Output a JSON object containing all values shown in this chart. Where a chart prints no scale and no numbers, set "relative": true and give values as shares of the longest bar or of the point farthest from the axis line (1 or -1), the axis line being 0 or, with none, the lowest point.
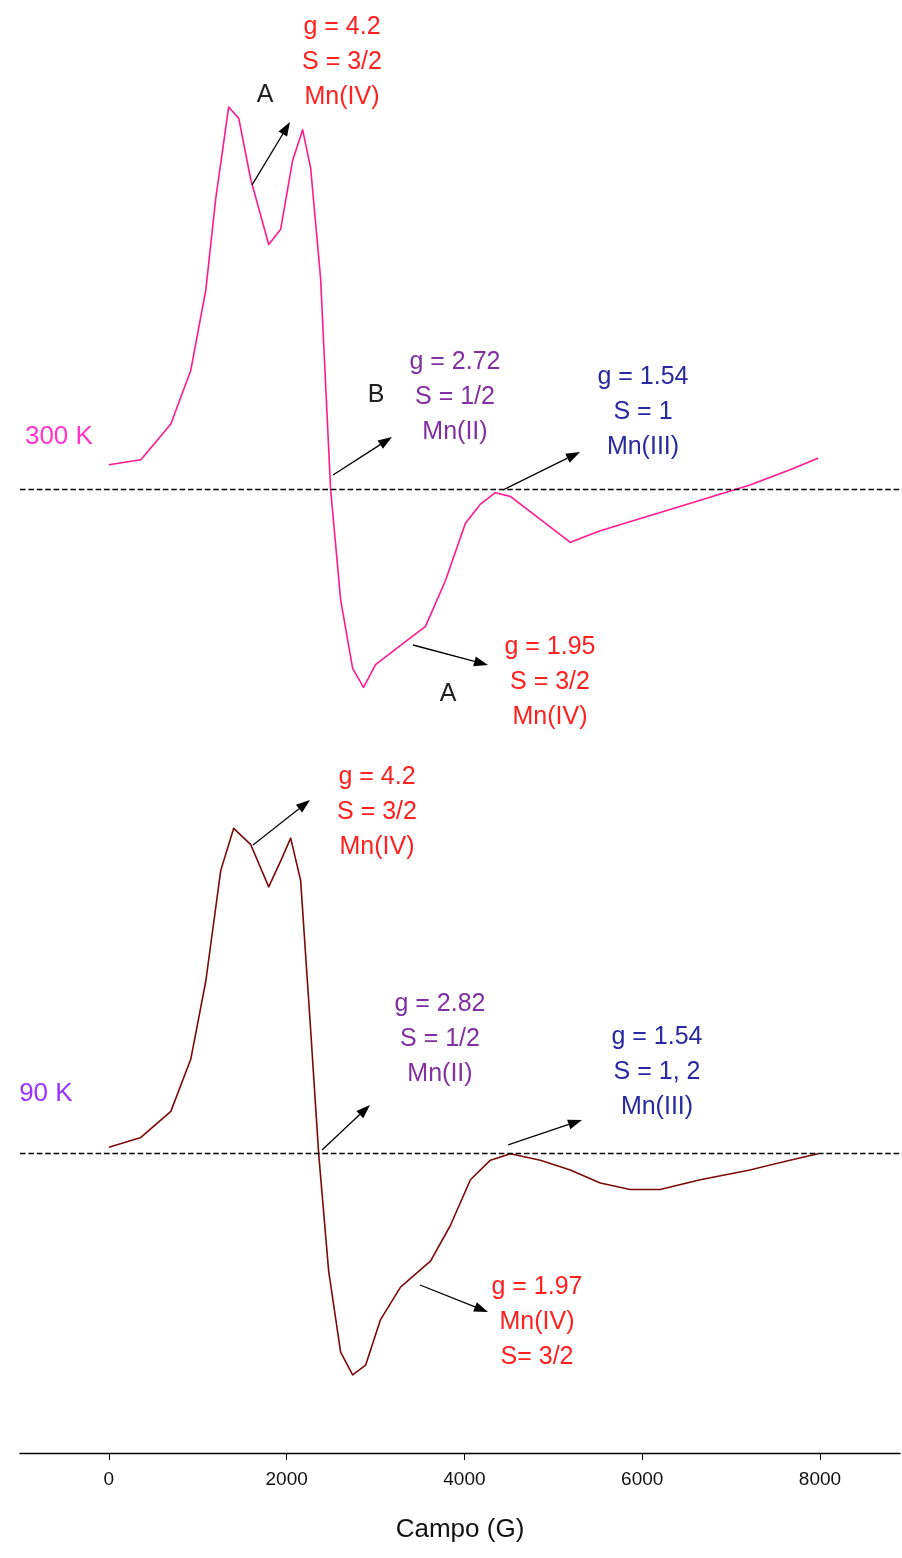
{
  "chart_data": [
    {
      "type": "line",
      "relative": true,
      "xlim": [
        -1000,
        8900
      ],
      "tick_labels": false,
      "series": [
        {
          "name": "300 K",
          "color": "#ff1a8c",
          "x": [
            0,
            360,
            697,
            921,
            1090,
            1202,
            1348,
            1461,
            1596,
            1798,
            1933,
            2067,
            2180,
            2270,
            2382,
            2494,
            2607,
            2742,
            2865,
            3000,
            3281,
            3562,
            3787,
            4011,
            4180,
            4348,
            4517,
            4854,
            5191,
            5528,
            6090,
            6652,
            7213,
            7663,
            7978
          ],
          "values": [
            0.063,
            0.076,
            0.17,
            0.31,
            0.52,
            0.76,
            1.0,
            0.97,
            0.81,
            0.64,
            0.68,
            0.86,
            0.94,
            0.84,
            0.55,
            0,
            -0.29,
            -0.47,
            -0.52,
            -0.46,
            -0.41,
            -0.36,
            -0.24,
            -0.09,
            -0.04,
            -0.01,
            -0.02,
            -0.08,
            -0.14,
            -0.11,
            -0.07,
            -0.03,
            0.01,
            0.05,
            0.08
          ]
        }
      ],
      "ref_lines": [
        {
          "axis": "y",
          "value": 0,
          "color": "#000000",
          "line_style": "dashed"
        }
      ],
      "annotations": [
        "A",
        "g = 4.2\nS = 3/2\nMn(IV)",
        "B",
        "g = 2.72\nS = 1/2\nMn(II)",
        "g = 1.54\nS = 1\nMn(III)",
        "g = 1.95\nS = 3/2\nMn(IV)",
        "A"
      ]
    },
    {
      "type": "line",
      "relative": true,
      "xlim": [
        -1000,
        8900
      ],
      "xlabel": "Campo (G)",
      "xticks": [
        0,
        2000,
        4000,
        6000,
        8000
      ],
      "series": [
        {
          "name": "90 K",
          "color": "#7a0a0a",
          "x": [
            0,
            360,
            697,
            921,
            1090,
            1258,
            1404,
            1596,
            1798,
            1933,
            2045,
            2157,
            2270,
            2360,
            2472,
            2607,
            2742,
            2888,
            3056,
            3281,
            3618,
            3843,
            4067,
            4292,
            4517,
            4854,
            5191,
            5528,
            5865,
            6202,
            6652,
            7213,
            7663,
            7978
          ],
          "values": [
            0.02,
            0.05,
            0.13,
            0.29,
            0.53,
            0.87,
            1.0,
            0.95,
            0.82,
            0.9,
            0.97,
            0.84,
            0.38,
            0,
            -0.36,
            -0.61,
            -0.68,
            -0.65,
            -0.51,
            -0.41,
            -0.33,
            -0.22,
            -0.08,
            -0.02,
            0,
            -0.02,
            -0.05,
            -0.09,
            -0.11,
            -0.11,
            -0.08,
            -0.05,
            -0.02,
            0
          ]
        }
      ],
      "ref_lines": [
        {
          "axis": "y",
          "value": 0,
          "color": "#000000",
          "line_style": "dashed"
        }
      ],
      "annotations": [
        "g = 4.2\nS = 3/2\nMn(IV)",
        "g = 2.82\nS = 1/2\nMn(II)",
        "g = 1.54\nS = 1, 2\nMn(III)",
        "g = 1.97\nMn(IV)\nS= 3/2"
      ]
    }
  ]
}
